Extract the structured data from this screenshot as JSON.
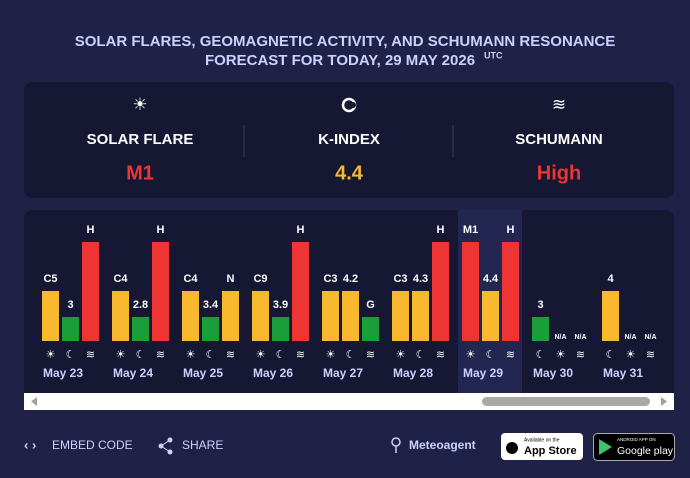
{
  "header": {
    "title_lines": [
      "SOLAR FLARES, GEOMAGNETIC ACTIVITY, AND SCHUMANN RESONANCE",
      "FORECAST FOR TODAY, 29 MAY 2026"
    ],
    "timezone": "UTC"
  },
  "summary": [
    {
      "label": "SOLAR FLARE",
      "value": "M1"
    },
    {
      "label": "K-INDEX",
      "value": 4.4
    },
    {
      "label": "SCHUMANN",
      "value": "High"
    }
  ],
  "days": [
    {
      "date": "May 23",
      "flare": "C5",
      "kp": 3,
      "schumann": "H"
    },
    {
      "date": "May 24",
      "flare": "C4",
      "kp": 2.8,
      "schumann": "H"
    },
    {
      "date": "May 25",
      "flare": "C4",
      "kp": 3.4,
      "schumann": "N"
    },
    {
      "date": "May 26",
      "flare": "C9",
      "kp": 3.9,
      "schumann": "H"
    },
    {
      "date": "May 27",
      "flare": "C3",
      "kp": 4.2,
      "schumann": "G"
    },
    {
      "date": "May 28",
      "flare": "C3",
      "kp": 4.3,
      "schumann": "H"
    },
    {
      "date": "May 29",
      "flare": "M1",
      "kp": 4.4,
      "schumann": "H",
      "today": true
    },
    {
      "date": "May 30",
      "flare": "N/A",
      "kp": 3,
      "schumann": "N/A"
    },
    {
      "date": "May 31",
      "flare": "N/A",
      "kp": 4,
      "schumann": "N/A"
    }
  ],
  "footer": {
    "embed": "EMBED CODE",
    "share": "SHARE",
    "brand": "Meteoagent",
    "app_store": {
      "small": "Available on the",
      "big": "App Store"
    },
    "google_play": {
      "small": "ANDROID APP ON",
      "big": "Google play"
    }
  }
}
